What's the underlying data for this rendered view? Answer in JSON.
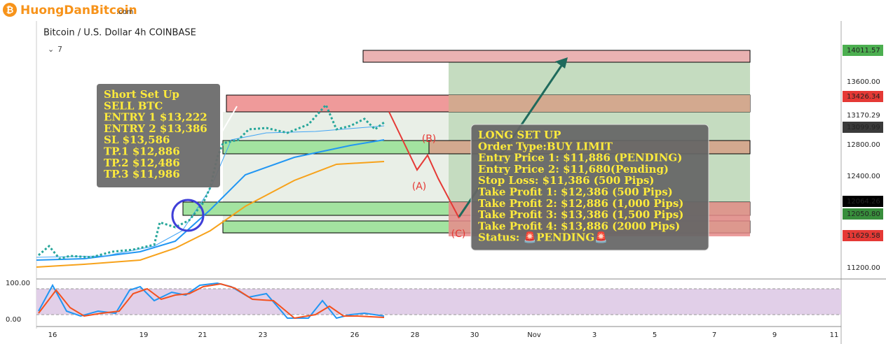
{
  "logo": {
    "name": "HuongDanBitcoin",
    "suffix": ".com"
  },
  "symbol": "Bitcoin / U.S. Dollar  4h  COINBASE",
  "indicator_count": "7",
  "price_axis": [
    "14011.57",
    "13600.00",
    "13426.34",
    "13170.29",
    "13099.99",
    "12800.00",
    "12400.00",
    "12064.26",
    "12050.80",
    "11629.58",
    "11200.00"
  ],
  "oscillator_axis": [
    "100.00",
    "0.00"
  ],
  "date_axis": [
    "16",
    "19",
    "21",
    "23",
    "26",
    "28",
    "30",
    "Nov",
    "3",
    "5",
    "7",
    "9",
    "11"
  ],
  "short_setup": [
    "Short Set Up",
    "SELL BTC",
    "ENTRY 1 $13,222",
    "ENTRY 2 $13,386",
    "SL $13,586",
    "TP.1 $12,886",
    "TP.2 $12,486",
    "TP.3 $11,986"
  ],
  "long_setup": [
    "LONG SET UP",
    "Order Type:BUY LIMIT",
    "Entry Price 1: $11,886 (PENDING)",
    "Entry Price 2: $11,680(Pending)",
    "Stop Loss: $11,386 (500 Pips)",
    "Take Profit 1: $12,386 (500 Pips)",
    "Take Profit 2: $12,886 (1,000 Pips)",
    "Take Profit 3: $13,386 (1,500 Pips)",
    "Take Profit 4: $13,886 (2000 Pips)",
    "Status: 🚨PENDING🚨"
  ],
  "wave_labels": [
    "(A)",
    "(B)",
    "(C)"
  ]
}
